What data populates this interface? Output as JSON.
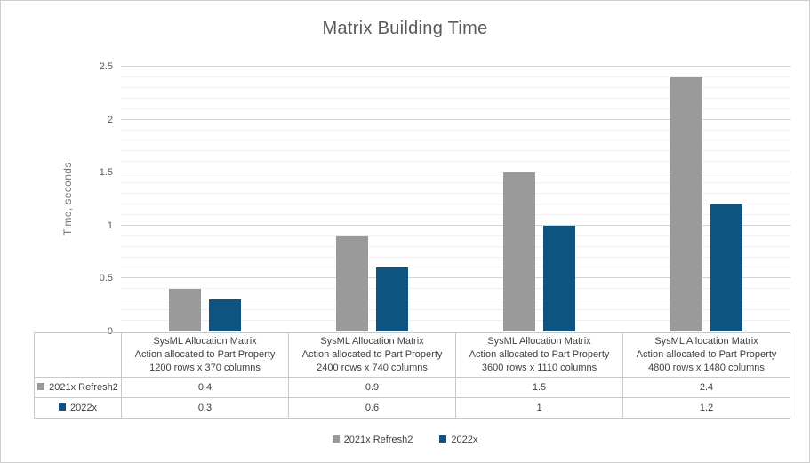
{
  "chart_data": {
    "type": "bar",
    "title": "Matrix Building Time",
    "ylabel": "Time, seconds",
    "ylim": [
      0,
      2.5
    ],
    "major_tick_step": 0.5,
    "minor_tick_step": 0.1,
    "grid": "horizontal major and minor gridlines",
    "legend_position": "bottom",
    "categories": [
      "SysML Allocation Matrix\nAction allocated to Part Property\n1200 rows x 370 columns",
      "SysML Allocation Matrix\nAction allocated to Part Property\n2400 rows x 740 columns",
      "SysML Allocation Matrix\nAction allocated to Part Property\n3600 rows x 1110 columns",
      "SysML Allocation Matrix\nAction allocated to Part Property\n4800 rows x 1480 columns"
    ],
    "series": [
      {
        "name": "2021x Refresh2",
        "color": "#9a9a9a",
        "values": [
          0.4,
          0.9,
          1.5,
          2.4
        ]
      },
      {
        "name": "2022x",
        "color": "#0e5480",
        "values": [
          0.3,
          0.6,
          1,
          1.2
        ]
      }
    ]
  },
  "colors": {
    "frame_border": "#cfcfcf",
    "major_gridline": "#d4d4d4",
    "minor_gridline": "#f1f1f1",
    "table_border": "#c9c9c9",
    "title_text": "#595959",
    "axis_text": "#595959",
    "table_text": "#404040"
  }
}
